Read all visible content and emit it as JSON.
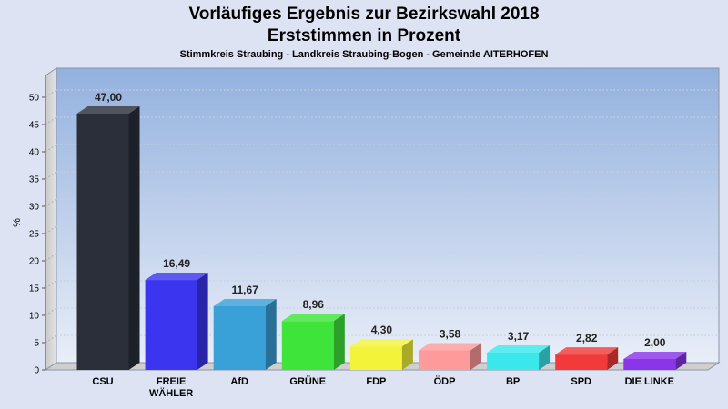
{
  "chart_data": {
    "type": "bar",
    "title_line1": "Vorläufiges Ergebnis zur Bezirkswahl 2018",
    "title_line2": "Erststimmen in Prozent",
    "subtitle": "Stimmkreis Straubing - Landkreis Straubing-Bogen - Gemeinde AITERHOFEN",
    "ylabel": "%",
    "xlabel": "",
    "ylim": [
      0,
      50
    ],
    "yticks": [
      0,
      5,
      10,
      15,
      20,
      25,
      30,
      35,
      40,
      45,
      50
    ],
    "grid": true,
    "categories": [
      "CSU",
      "FREIE WÄHLER",
      "AfD",
      "GRÜNE",
      "FDP",
      "ÖDP",
      "BP",
      "SPD",
      "DIE LINKE"
    ],
    "category_lines": [
      [
        "CSU"
      ],
      [
        "FREIE",
        "WÄHLER"
      ],
      [
        "AfD"
      ],
      [
        "GRÜNE"
      ],
      [
        "FDP"
      ],
      [
        "ÖDP"
      ],
      [
        "BP"
      ],
      [
        "SPD"
      ],
      [
        "DIE LINKE"
      ]
    ],
    "values": [
      47.0,
      16.49,
      11.67,
      8.96,
      4.3,
      3.58,
      3.17,
      2.82,
      2.0
    ],
    "value_labels": [
      "47,00",
      "16,49",
      "11,67",
      "8,96",
      "4,30",
      "3,58",
      "3,17",
      "2,82",
      "2,00"
    ],
    "colors": [
      "#2a2f3a",
      "#3b35f0",
      "#3aa0d8",
      "#3fe43a",
      "#f3f33a",
      "#ff9a9a",
      "#3ae8ec",
      "#f23a3a",
      "#8a35e8"
    ]
  }
}
